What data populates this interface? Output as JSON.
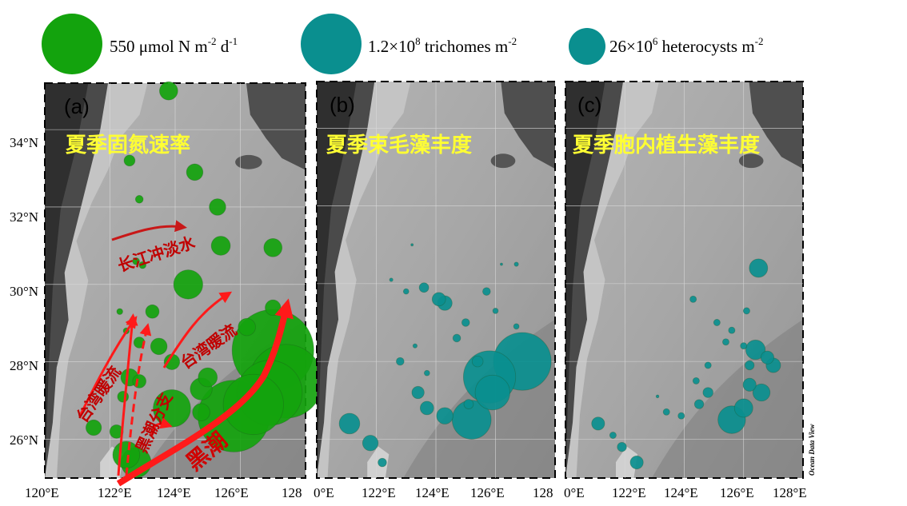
{
  "legend": [
    {
      "label_main": "550 μmol N m",
      "sup1": "-2",
      "mid": " d",
      "sup2": "-1",
      "color": "#13a30d"
    },
    {
      "label_main": "1.2×10",
      "sup1": "8",
      "mid": " trichomes m",
      "sup2": "-2",
      "color": "#0a8f8f"
    },
    {
      "label_main": "26×10",
      "sup1": "6",
      "mid": " heterocysts m",
      "sup2": "-2",
      "color": "#0a8f8f"
    }
  ],
  "y_axis_labels": [
    "34°N",
    "32°N",
    "30°N",
    "28°N",
    "26°N"
  ],
  "x_axis_labels": {
    "a": [
      "120°E",
      "122°E",
      "124°E",
      "126°E",
      "128"
    ],
    "b": [
      "0°E",
      "122°E",
      "124°E",
      "126°E",
      "128"
    ],
    "c": [
      "0°E",
      "122°E",
      "124°E",
      "126°E",
      "128°E"
    ]
  },
  "panels": {
    "a": {
      "label": "(a)",
      "title": "夏季固氮速率"
    },
    "b": {
      "label": "(b)",
      "title": "夏季束毛藻丰度"
    },
    "c": {
      "label": "(c)",
      "title": "夏季胞内植生藻丰度"
    }
  },
  "annotations": {
    "changjiang": "长江冲淡水",
    "taiwan_left": "台湾暖流",
    "taiwan_right": "台湾暖流",
    "kuroshio_branch": "黑潮分支",
    "kuroshio": "黑潮"
  },
  "credit": "Ocean Data View",
  "colors": {
    "green": "#13a30d",
    "teal": "#0a8f8f",
    "arrow": "#ff1a1a",
    "title": "#ffff33"
  },
  "chart_data": {
    "type": "scatter",
    "xlim": [
      120,
      128
    ],
    "ylim": [
      25,
      35.2
    ],
    "series": [
      {
        "name": "Nitrogen fixation rate (a)",
        "points": [
          [
            123.8,
            35.0,
            55
          ],
          [
            122.6,
            33.2,
            20
          ],
          [
            124.6,
            32.9,
            45
          ],
          [
            122.9,
            32.2,
            10
          ],
          [
            125.3,
            32.0,
            45
          ],
          [
            125.4,
            31.0,
            60
          ],
          [
            127.0,
            30.95,
            55
          ],
          [
            122.8,
            30.6,
            8
          ],
          [
            123.0,
            30.5,
            8
          ],
          [
            124.4,
            30.0,
            140
          ],
          [
            122.3,
            29.3,
            6
          ],
          [
            127.0,
            29.4,
            40
          ],
          [
            123.3,
            29.3,
            30
          ],
          [
            122.5,
            28.8,
            6
          ],
          [
            126.2,
            28.9,
            50
          ],
          [
            122.9,
            28.5,
            20
          ],
          [
            123.5,
            28.4,
            45
          ],
          [
            127.0,
            28.3,
            1100
          ],
          [
            123.9,
            28.0,
            40
          ],
          [
            122.6,
            27.6,
            50
          ],
          [
            122.9,
            27.5,
            30
          ],
          [
            126.9,
            27.2,
            700
          ],
          [
            127.4,
            27.5,
            900
          ],
          [
            124.8,
            27.3,
            80
          ],
          [
            122.4,
            27.1,
            20
          ],
          [
            122.2,
            26.2,
            30
          ],
          [
            123.9,
            26.8,
            230
          ],
          [
            126.4,
            26.9,
            600
          ],
          [
            125.0,
            27.6,
            60
          ],
          [
            124.8,
            26.7,
            50
          ],
          [
            125.8,
            26.6,
            850
          ],
          [
            121.5,
            26.3,
            40
          ],
          [
            122.5,
            25.6,
            120
          ],
          [
            122.8,
            25.4,
            150
          ]
        ]
      },
      {
        "name": "Trichodesmium abundance (b)",
        "points": [
          [
            123.2,
            31.0,
            1
          ],
          [
            122.5,
            30.1,
            2
          ],
          [
            123.0,
            29.8,
            5
          ],
          [
            123.6,
            29.9,
            15
          ],
          [
            124.1,
            29.6,
            30
          ],
          [
            124.3,
            29.5,
            35
          ],
          [
            125.7,
            29.8,
            10
          ],
          [
            126.2,
            30.5,
            1
          ],
          [
            126.7,
            30.5,
            3
          ],
          [
            126.0,
            29.3,
            5
          ],
          [
            125.0,
            29.0,
            10
          ],
          [
            124.7,
            28.6,
            10
          ],
          [
            125.4,
            28.0,
            20
          ],
          [
            126.7,
            28.9,
            5
          ],
          [
            123.3,
            28.4,
            3
          ],
          [
            122.8,
            28.0,
            10
          ],
          [
            123.7,
            27.7,
            5
          ],
          [
            126.9,
            28.0,
            550
          ],
          [
            125.8,
            27.6,
            450
          ],
          [
            123.4,
            27.2,
            25
          ],
          [
            123.7,
            26.8,
            30
          ],
          [
            124.3,
            26.6,
            45
          ],
          [
            125.1,
            26.9,
            15
          ],
          [
            125.9,
            27.2,
            200
          ],
          [
            125.2,
            26.5,
            250
          ],
          [
            121.1,
            26.4,
            70
          ],
          [
            121.8,
            25.9,
            40
          ],
          [
            122.2,
            25.4,
            12
          ]
        ]
      },
      {
        "name": "Richelia abundance (c)",
        "points": [
          [
            126.5,
            30.4,
            40
          ],
          [
            124.3,
            29.6,
            5
          ],
          [
            126.1,
            29.3,
            5
          ],
          [
            125.1,
            29.0,
            5
          ],
          [
            125.6,
            28.8,
            5
          ],
          [
            125.4,
            28.5,
            5
          ],
          [
            126.0,
            28.4,
            5
          ],
          [
            124.8,
            27.9,
            5
          ],
          [
            126.4,
            28.3,
            45
          ],
          [
            126.2,
            27.9,
            10
          ],
          [
            126.8,
            28.1,
            20
          ],
          [
            127.0,
            27.9,
            25
          ],
          [
            126.2,
            27.4,
            20
          ],
          [
            124.4,
            27.5,
            5
          ],
          [
            124.8,
            27.2,
            12
          ],
          [
            124.5,
            26.9,
            10
          ],
          [
            126.0,
            26.8,
            40
          ],
          [
            126.6,
            27.2,
            35
          ],
          [
            125.6,
            26.5,
            90
          ],
          [
            123.1,
            27.1,
            1
          ],
          [
            123.9,
            26.6,
            5
          ],
          [
            123.4,
            26.7,
            5
          ],
          [
            121.1,
            26.4,
            20
          ],
          [
            121.6,
            26.1,
            5
          ],
          [
            121.9,
            25.8,
            10
          ],
          [
            122.4,
            25.4,
            20
          ]
        ]
      }
    ]
  }
}
